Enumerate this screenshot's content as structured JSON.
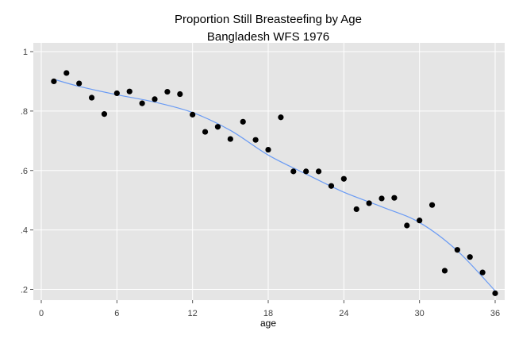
{
  "chart_data": {
    "type": "scatter",
    "title": "Proportion Still Breasteefing by Age",
    "subtitle": "Bangladesh WFS 1976",
    "xlabel": "age",
    "ylabel": "",
    "xlim": [
      0,
      36
    ],
    "ylim": [
      0.2,
      1.0
    ],
    "xticks": [
      0,
      6,
      12,
      18,
      24,
      30,
      36
    ],
    "xtick_labels": [
      "0",
      "6",
      "12",
      "18",
      "24",
      "30",
      "36"
    ],
    "yticks": [
      0.2,
      0.4,
      0.6,
      0.8,
      1.0
    ],
    "ytick_labels": [
      ".2",
      ".4",
      ".6",
      ".8",
      "1"
    ],
    "grid": true,
    "legend": "none",
    "colors": {
      "points": "#000000",
      "smooth": "#6a9bf4",
      "panel": "#e5e5e5",
      "grid": "#ffffff"
    },
    "points": {
      "x": [
        1,
        2,
        3,
        4,
        5,
        6,
        7,
        8,
        9,
        10,
        11,
        12,
        13,
        14,
        15,
        16,
        17,
        18,
        19,
        20,
        21,
        22,
        23,
        24,
        25,
        26,
        27,
        28,
        29,
        30,
        31,
        32,
        33,
        34,
        35,
        36
      ],
      "y": [
        0.9,
        0.928,
        0.893,
        0.845,
        0.79,
        0.86,
        0.866,
        0.826,
        0.84,
        0.865,
        0.857,
        0.788,
        0.73,
        0.747,
        0.706,
        0.764,
        0.703,
        0.67,
        0.779,
        0.597,
        0.597,
        0.597,
        0.548,
        0.572,
        0.47,
        0.49,
        0.506,
        0.508,
        0.415,
        0.432,
        0.484,
        0.263,
        0.333,
        0.309,
        0.257,
        0.187
      ]
    },
    "smooth_line": {
      "x": [
        1,
        3,
        6,
        9,
        12,
        15,
        18,
        21,
        24,
        27,
        30,
        33,
        36
      ],
      "y": [
        0.907,
        0.883,
        0.855,
        0.83,
        0.795,
        0.735,
        0.652,
        0.588,
        0.527,
        0.478,
        0.425,
        0.33,
        0.195
      ]
    }
  }
}
